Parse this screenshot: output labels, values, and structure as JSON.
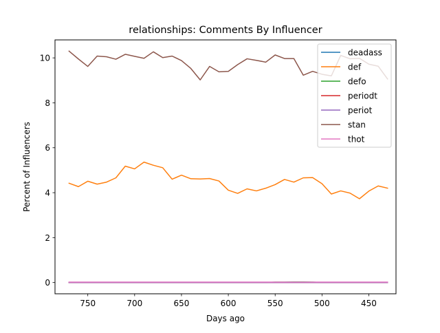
{
  "chart_data": {
    "type": "line",
    "title": "relationships: Comments By Influencer",
    "xlabel": "Days ago",
    "ylabel": "Percent of Influencers",
    "x_inverted": true,
    "xlim": [
      785,
      421
    ],
    "ylim": [
      -0.5,
      10.8
    ],
    "x_ticks": [
      750,
      700,
      650,
      600,
      550,
      500,
      450
    ],
    "y_ticks": [
      0,
      2,
      4,
      6,
      8,
      10
    ],
    "x_tick_labels": [
      "750",
      "700",
      "650",
      "600",
      "550",
      "500",
      "450"
    ],
    "y_tick_labels": [
      "0",
      "2",
      "4",
      "6",
      "8",
      "10"
    ],
    "grid": false,
    "legend_position": "top-right",
    "x": [
      770,
      760,
      750,
      740,
      730,
      720,
      710,
      700,
      690,
      680,
      670,
      660,
      650,
      640,
      630,
      620,
      610,
      600,
      590,
      580,
      570,
      560,
      550,
      540,
      530,
      520,
      510,
      500,
      490,
      480,
      470,
      460,
      450,
      440,
      430
    ],
    "series": [
      {
        "name": "deadass",
        "color": "#1f77b4",
        "values": [
          0,
          0,
          0,
          0,
          0,
          0,
          0,
          0,
          0,
          0,
          0,
          0,
          0,
          0,
          0,
          0,
          0,
          0,
          0,
          0,
          0,
          0,
          0.01,
          0.01,
          0.01,
          0.01,
          0.01,
          0,
          0,
          0,
          0,
          0,
          0,
          0,
          0
        ]
      },
      {
        "name": "def",
        "color": "#ff7f0e",
        "values": [
          4.42,
          4.27,
          4.51,
          4.38,
          4.47,
          4.66,
          5.18,
          5.06,
          5.36,
          5.22,
          5.11,
          4.6,
          4.78,
          4.62,
          4.61,
          4.63,
          4.52,
          4.11,
          3.97,
          4.17,
          4.08,
          4.2,
          4.36,
          4.59,
          4.47,
          4.66,
          4.67,
          4.4,
          3.94,
          4.08,
          3.98,
          3.73,
          4.07,
          4.3,
          4.2
        ]
      },
      {
        "name": "defo",
        "color": "#2ca02c",
        "values": [
          0,
          0,
          0,
          0,
          0,
          0,
          0,
          0,
          0,
          0,
          0,
          0,
          0,
          0,
          0,
          0,
          0,
          0,
          0,
          0,
          0,
          0,
          0.02,
          0.02,
          0.03,
          0.03,
          0.02,
          0,
          0,
          0,
          0,
          0,
          0,
          0,
          0
        ]
      },
      {
        "name": "periodt",
        "color": "#d62728",
        "values": [
          0,
          0,
          0,
          0,
          0,
          0,
          0,
          0,
          0,
          0,
          0,
          0,
          0,
          0,
          0,
          0,
          0,
          0,
          0,
          0,
          0,
          0,
          0,
          0,
          0,
          0,
          0,
          0,
          0,
          0,
          0,
          0,
          0,
          0,
          0
        ]
      },
      {
        "name": "periot",
        "color": "#9467bd",
        "values": [
          0,
          0,
          0,
          0,
          0,
          0,
          0,
          0,
          0,
          0,
          0,
          0,
          0,
          0,
          0,
          0,
          0,
          0,
          0,
          0,
          0,
          0,
          0,
          0,
          0,
          0,
          0,
          0,
          0,
          0,
          0,
          0,
          0,
          0,
          0
        ]
      },
      {
        "name": "stan",
        "color": "#8c564b",
        "values": [
          10.3,
          9.95,
          9.62,
          10.08,
          10.05,
          9.94,
          10.16,
          10.07,
          9.98,
          10.27,
          10.01,
          10.08,
          9.88,
          9.53,
          9.02,
          9.62,
          9.38,
          9.4,
          9.7,
          9.96,
          9.89,
          9.81,
          10.13,
          9.97,
          9.97,
          9.23,
          9.4,
          9.27,
          9.2,
          10.11,
          9.96,
          9.98,
          9.72,
          9.63,
          9.06
        ]
      },
      {
        "name": "thot",
        "color": "#e377c2",
        "values": [
          0.02,
          0.02,
          0.02,
          0.02,
          0.02,
          0.02,
          0.02,
          0.02,
          0.02,
          0.02,
          0.02,
          0.02,
          0.02,
          0.02,
          0.02,
          0.02,
          0.02,
          0.02,
          0.02,
          0.02,
          0.02,
          0.02,
          0.02,
          0.02,
          0.02,
          0.02,
          0.02,
          0.02,
          0.02,
          0.02,
          0.02,
          0.02,
          0.02,
          0.02,
          0.02
        ]
      }
    ]
  }
}
